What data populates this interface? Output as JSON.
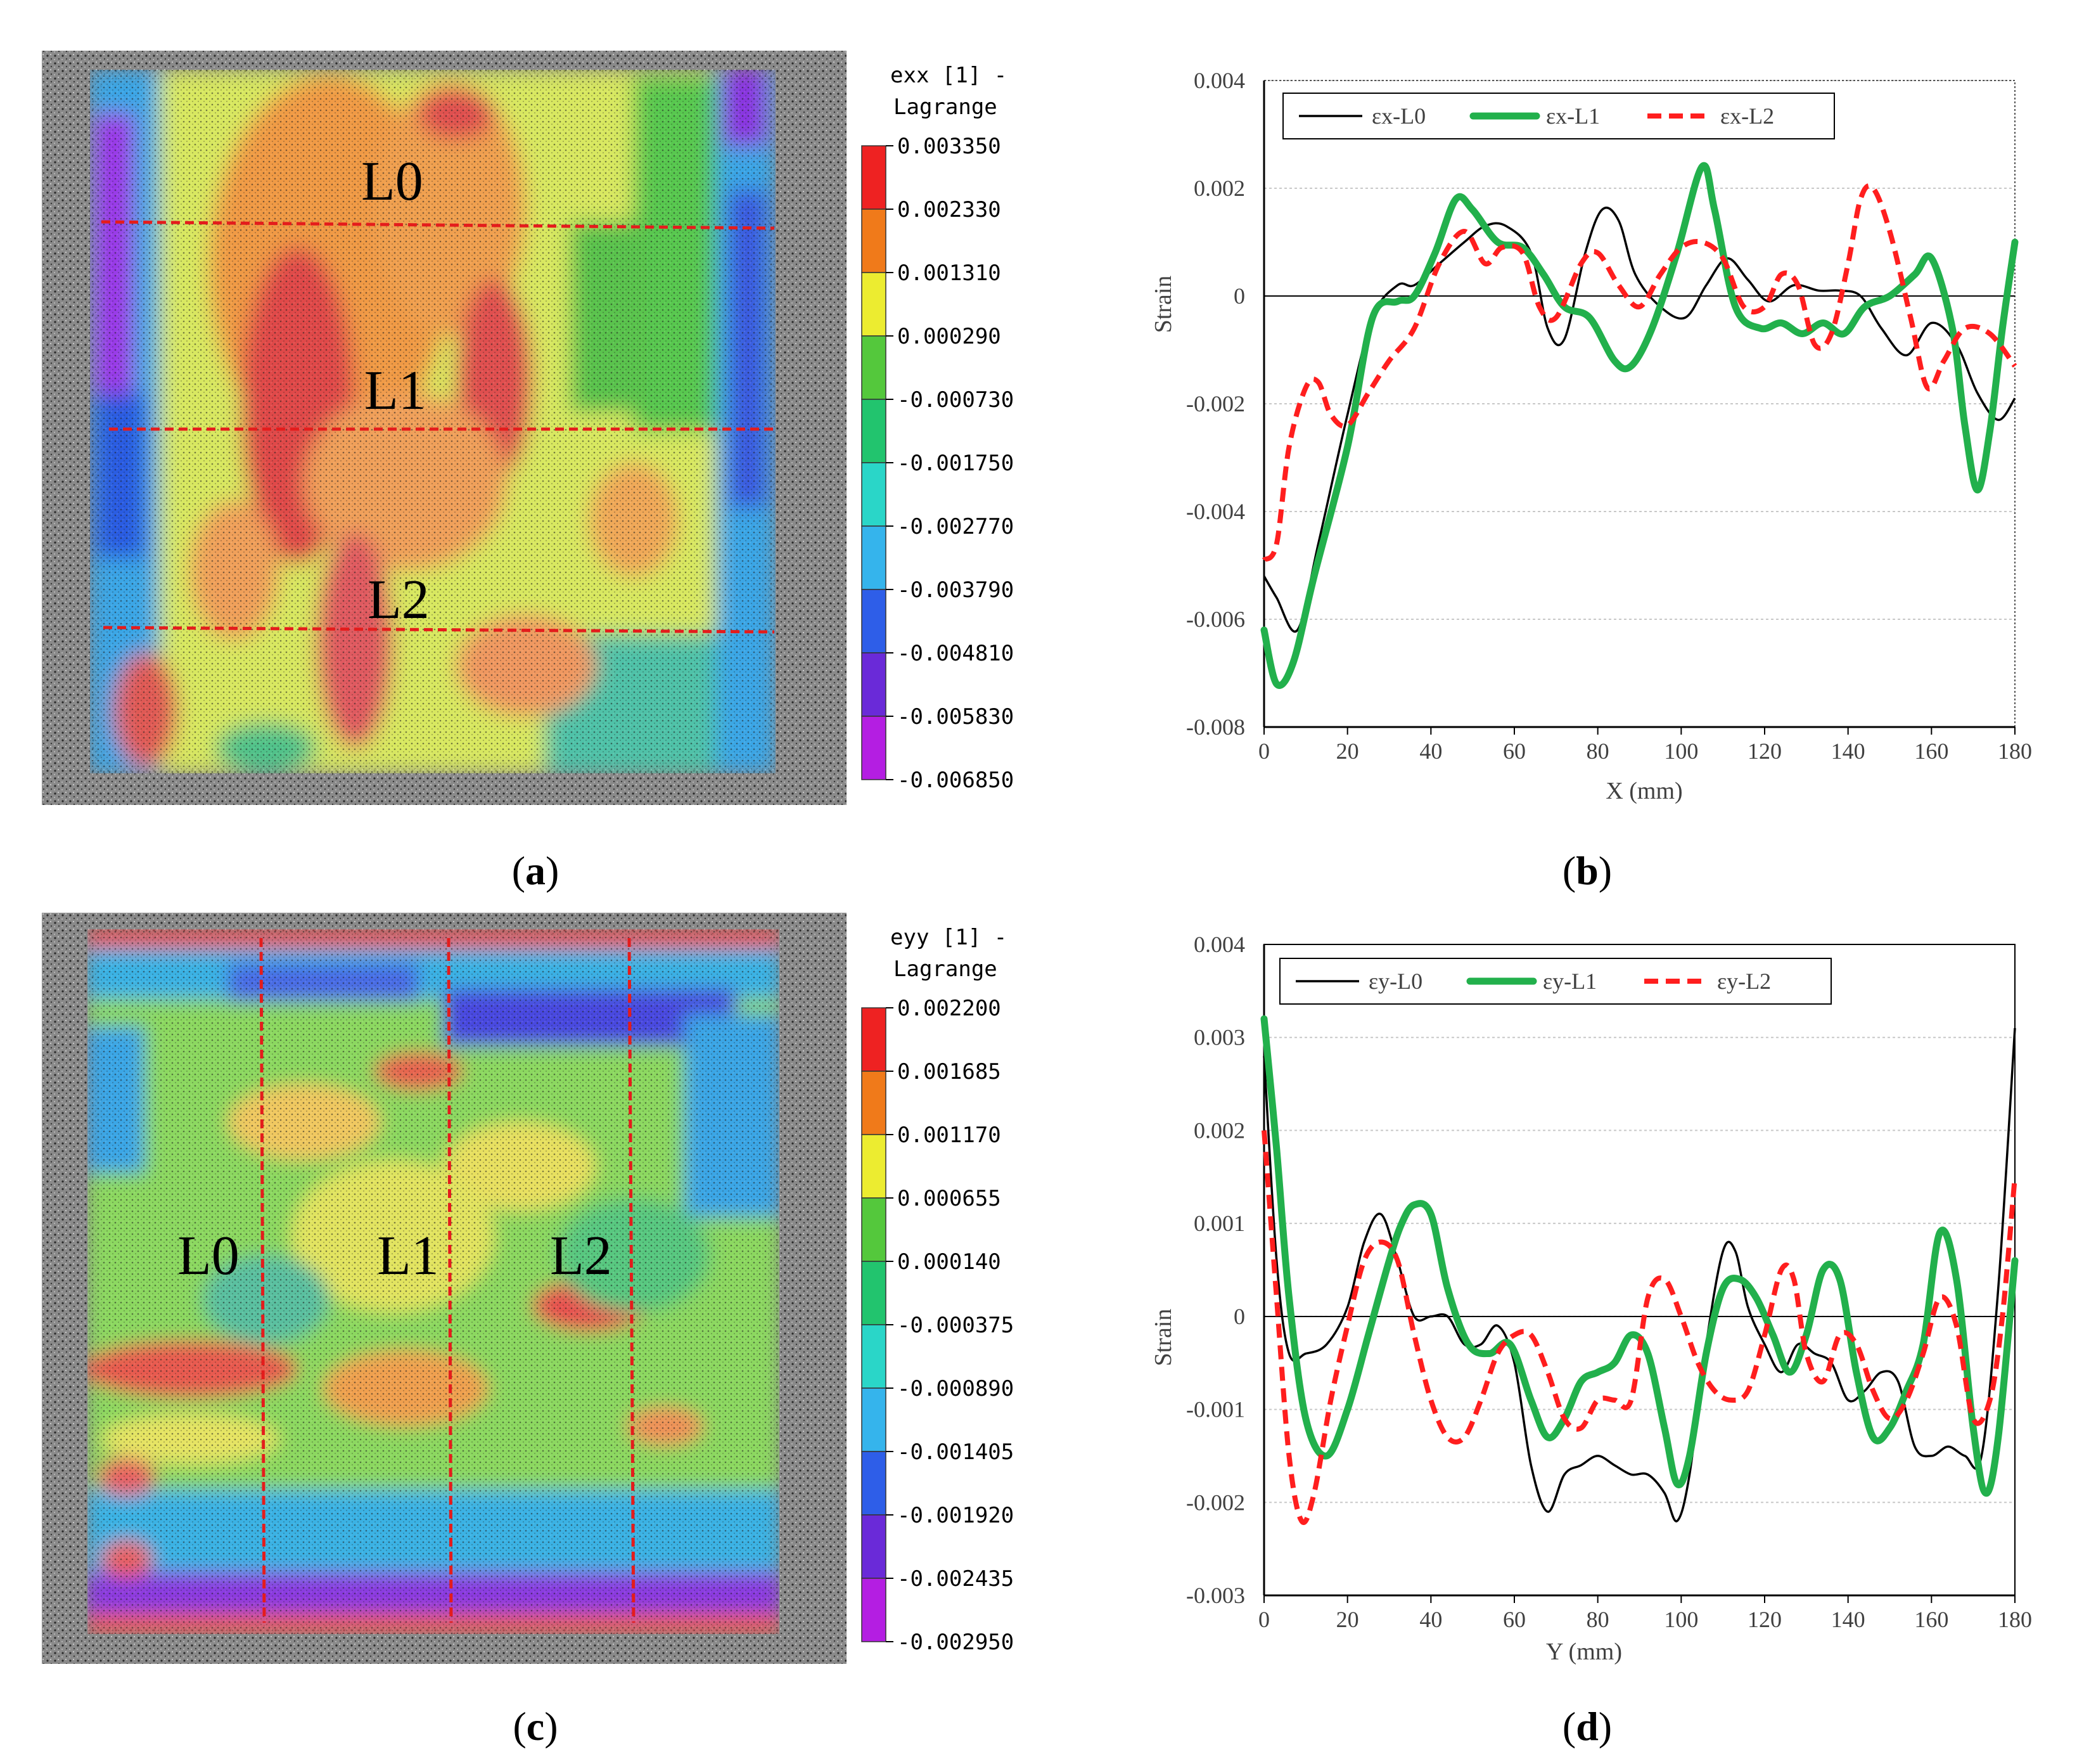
{
  "panel_labels": {
    "a": "a",
    "b": "b",
    "c": "c",
    "d": "d"
  },
  "panel_a": {
    "colorbar_title_1": "exx [1] -",
    "colorbar_title_2": "Lagrange",
    "colorbar_values": [
      "0.003350",
      "0.002330",
      "0.001310",
      "0.000290",
      "-0.000730",
      "-0.001750",
      "-0.002770",
      "-0.003790",
      "-0.004810",
      "-0.005830",
      "-0.006850"
    ],
    "line_labels": [
      "L0",
      "L1",
      "L2"
    ]
  },
  "panel_c": {
    "colorbar_title_1": "eyy [1] -",
    "colorbar_title_2": "Lagrange",
    "colorbar_values": [
      "0.002200",
      "0.001685",
      "0.001170",
      "0.000655",
      "0.000140",
      "-0.000375",
      "-0.000890",
      "-0.001405",
      "-0.001920",
      "-0.002435",
      "-0.002950"
    ],
    "line_labels": [
      "L0",
      "L1",
      "L2"
    ]
  },
  "colors": {
    "L0": "#000000",
    "L1": "#22b04c",
    "L2": "#ff1e1e",
    "guide": "#e41c1c",
    "scale": [
      "#ee2222",
      "#f07a1a",
      "#ecec30",
      "#54c83c",
      "#22c46e",
      "#2ad6c8",
      "#35b4ec",
      "#2e5ee8",
      "#6a2ad8",
      "#b41ee2"
    ]
  },
  "chart_data": [
    {
      "id": "b",
      "type": "line",
      "xlabel": "X (mm)",
      "ylabel": "Strain",
      "xlim": [
        0,
        180
      ],
      "ylim": [
        -0.008,
        0.004
      ],
      "xticks": [
        0,
        20,
        40,
        60,
        80,
        100,
        120,
        140,
        160,
        180
      ],
      "xtick_labels": [
        "0",
        "20",
        "40",
        "60",
        "80",
        "100",
        "120",
        "140",
        "160",
        "180"
      ],
      "yticks": [
        0.004,
        0.002,
        0,
        -0.002,
        -0.004,
        -0.006,
        -0.008
      ],
      "ytick_labels": [
        "0.004",
        "0.002",
        "0",
        "-0.002",
        "-0.004",
        "-0.006",
        "-0.008"
      ],
      "grid": "horizontal",
      "legend_position": "top-left",
      "series": [
        {
          "name": "εx-L0",
          "style": "thin-solid",
          "x": [
            0,
            3,
            8,
            13,
            20,
            26,
            32,
            36,
            42,
            48,
            53,
            58,
            64,
            68,
            72,
            77,
            81,
            85,
            89,
            95,
            101,
            106,
            111,
            116,
            121,
            127,
            133,
            138,
            143,
            148,
            154,
            160,
            166,
            171,
            176,
            180
          ],
          "y": [
            -0.0052,
            -0.0056,
            -0.0062,
            -0.0046,
            -0.0022,
            -0.0004,
            0.0002,
            0.0002,
            0.0006,
            0.001,
            0.0013,
            0.0013,
            0.0008,
            -0.0006,
            -0.0008,
            0.0008,
            0.0016,
            0.0014,
            0.0004,
            -0.0002,
            -0.0004,
            0.0002,
            0.0007,
            0.0003,
            -0.0001,
            0.0002,
            0.0001,
            0.0001,
            0.0,
            -0.0006,
            -0.0011,
            -0.0005,
            -0.0009,
            -0.0018,
            -0.0023,
            -0.0019
          ]
        },
        {
          "name": "εx-L1",
          "style": "thick-solid",
          "x": [
            0,
            3,
            7,
            12,
            20,
            26,
            32,
            36,
            41,
            46,
            50,
            56,
            62,
            67,
            72,
            78,
            84,
            88,
            93,
            99,
            105,
            108,
            113,
            119,
            124,
            129,
            134,
            139,
            144,
            150,
            156,
            160,
            165,
            168,
            171,
            174,
            177,
            180
          ],
          "y": [
            -0.0062,
            -0.0072,
            -0.0068,
            -0.0052,
            -0.0028,
            -0.0004,
            -0.0001,
            0.0,
            0.0008,
            0.0018,
            0.0016,
            0.001,
            0.0009,
            0.0004,
            -0.0002,
            -0.0004,
            -0.0012,
            -0.0013,
            -0.0006,
            0.0008,
            0.0024,
            0.0016,
            -0.0002,
            -0.0006,
            -0.0005,
            -0.0007,
            -0.0005,
            -0.0007,
            -0.0002,
            0.0,
            0.0004,
            0.0007,
            -0.0006,
            -0.0024,
            -0.0036,
            -0.0025,
            -0.0006,
            0.001
          ]
        },
        {
          "name": "εx-L2",
          "style": "dashed",
          "x": [
            0,
            3,
            6,
            10,
            13,
            16,
            20,
            25,
            30,
            36,
            42,
            48,
            53,
            57,
            62,
            66,
            70,
            76,
            80,
            85,
            90,
            95,
            100,
            105,
            110,
            115,
            120,
            124,
            128,
            132,
            136,
            140,
            143,
            146,
            150,
            155,
            159,
            163,
            168,
            174,
            180
          ],
          "y": [
            -0.0049,
            -0.0046,
            -0.0028,
            -0.0017,
            -0.0016,
            -0.0022,
            -0.0024,
            -0.0018,
            -0.0012,
            -0.0006,
            0.0006,
            0.0012,
            0.0006,
            0.0009,
            0.0008,
            -0.0002,
            -0.0004,
            0.0006,
            0.0008,
            0.0002,
            -0.0002,
            0.0004,
            0.0009,
            0.001,
            0.0007,
            -0.0002,
            -0.0002,
            0.0004,
            0.0002,
            -0.0009,
            -0.0007,
            0.0006,
            0.0018,
            0.002,
            0.0012,
            -0.0004,
            -0.0017,
            -0.0012,
            -0.0006,
            -0.0007,
            -0.0013
          ]
        }
      ]
    },
    {
      "id": "d",
      "type": "line",
      "xlabel": "Y (mm)",
      "ylabel": "Strain",
      "xlim": [
        0,
        180
      ],
      "ylim": [
        -0.003,
        0.004
      ],
      "xticks": [
        0,
        20,
        40,
        60,
        80,
        100,
        120,
        140,
        160,
        180
      ],
      "xtick_labels": [
        "0",
        "20",
        "40",
        "60",
        "80",
        "100",
        "120",
        "140",
        "160",
        "180"
      ],
      "yticks": [
        0.004,
        0.003,
        0.002,
        0.001,
        0,
        -0.001,
        -0.002,
        -0.003
      ],
      "ytick_labels": [
        "0.004",
        "0.003",
        "0.002",
        "0.001",
        "0",
        "-0.001",
        "-0.002",
        "-0.003"
      ],
      "grid": "horizontal",
      "legend_position": "top-left",
      "series": [
        {
          "name": "εy-L0",
          "style": "thin-solid",
          "x": [
            0,
            3,
            6,
            10,
            15,
            20,
            24,
            28,
            32,
            36,
            40,
            44,
            48,
            52,
            56,
            60,
            64,
            68,
            72,
            76,
            80,
            84,
            88,
            92,
            96,
            99,
            102,
            106,
            110,
            113,
            116,
            120,
            124,
            128,
            132,
            136,
            140,
            144,
            148,
            152,
            156,
            160,
            164,
            168,
            172,
            176,
            180
          ],
          "y": [
            0.0028,
            0.0006,
            -0.0004,
            -0.0004,
            -0.0003,
            0.0001,
            0.0008,
            0.0011,
            0.0006,
            0.0,
            0.0,
            0.0,
            -0.0003,
            -0.0003,
            -0.0001,
            -0.0005,
            -0.0016,
            -0.0021,
            -0.0017,
            -0.0016,
            -0.0015,
            -0.0016,
            -0.0017,
            -0.0017,
            -0.0019,
            -0.0022,
            -0.0017,
            -0.0003,
            0.0007,
            0.0007,
            0.0001,
            -0.0003,
            -0.0006,
            -0.0003,
            -0.0004,
            -0.0005,
            -0.0009,
            -0.0008,
            -0.0006,
            -0.0007,
            -0.0014,
            -0.0015,
            -0.0014,
            -0.0015,
            -0.0015,
            0.0003,
            0.0031
          ]
        },
        {
          "name": "εy-L1",
          "style": "thick-solid",
          "x": [
            0,
            3,
            6,
            10,
            15,
            20,
            25,
            30,
            33,
            36,
            40,
            44,
            49,
            54,
            59,
            64,
            68,
            72,
            76,
            80,
            84,
            88,
            92,
            96,
            99,
            102,
            106,
            110,
            114,
            118,
            122,
            126,
            130,
            134,
            138,
            142,
            146,
            150,
            154,
            158,
            162,
            166,
            170,
            173,
            176,
            180
          ],
          "y": [
            0.0032,
            0.0018,
            0.0002,
            -0.0011,
            -0.0015,
            -0.001,
            -0.0002,
            0.0006,
            0.001,
            0.0012,
            0.0011,
            0.0003,
            -0.0003,
            -0.0004,
            -0.0003,
            -0.0009,
            -0.0013,
            -0.0011,
            -0.0007,
            -0.0006,
            -0.0005,
            -0.0002,
            -0.0004,
            -0.0012,
            -0.0018,
            -0.0015,
            -0.0004,
            0.0003,
            0.0004,
            0.0002,
            -0.0002,
            -0.0006,
            -0.0002,
            0.0005,
            0.0004,
            -0.0006,
            -0.0013,
            -0.0012,
            -0.0008,
            -0.0003,
            0.0009,
            0.0004,
            -0.0012,
            -0.0019,
            -0.0013,
            0.0006
          ]
        },
        {
          "name": "εy-L2",
          "style": "dashed",
          "x": [
            0,
            3,
            6,
            9,
            12,
            16,
            20,
            24,
            28,
            32,
            36,
            40,
            44,
            48,
            52,
            56,
            60,
            64,
            68,
            72,
            76,
            80,
            84,
            88,
            92,
            96,
            100,
            104,
            108,
            112,
            116,
            120,
            124,
            127,
            130,
            134,
            138,
            142,
            146,
            150,
            154,
            158,
            162,
            166,
            170,
            174,
            177,
            180
          ],
          "y": [
            0.002,
            0.0002,
            -0.0015,
            -0.0022,
            -0.0019,
            -0.0009,
            -0.0001,
            0.0006,
            0.0008,
            0.0006,
            -0.0002,
            -0.0009,
            -0.0013,
            -0.0013,
            -0.0009,
            -0.0004,
            -0.0002,
            -0.0002,
            -0.0006,
            -0.0011,
            -0.0012,
            -0.0009,
            -0.0009,
            -0.0009,
            0.0002,
            0.0004,
            0.0,
            -0.0005,
            -0.0008,
            -0.0009,
            -0.0008,
            -0.0002,
            0.0005,
            0.0004,
            -0.0004,
            -0.0007,
            -0.0002,
            -0.0003,
            -0.0008,
            -0.0011,
            -0.0009,
            -0.0004,
            0.0002,
            -0.0001,
            -0.0011,
            -0.0009,
            0.0,
            0.0015
          ]
        }
      ]
    }
  ]
}
